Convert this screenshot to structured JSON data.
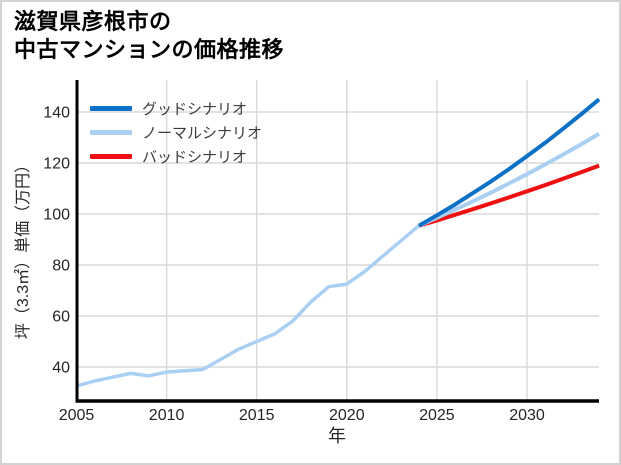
{
  "header": {
    "title_line1": "滋賀県彦根市の",
    "title_line2": "中古マンションの価格推移"
  },
  "colors": {
    "good": "#0b70c6",
    "normal": "#a9d0f3",
    "bad": "#ee1010",
    "grid": "#d9d9d9",
    "spine": "#000000",
    "tick_text": "#262626",
    "legend_text": "#3c3c3c"
  },
  "chart_data": {
    "type": "line",
    "title": "滋賀県彦根市の中古マンションの価格推移",
    "xlabel": "年",
    "ylabel": "坪（3.3㎡）単価（万円）",
    "xlim": [
      2005,
      2034.5
    ],
    "ylim": [
      26,
      153
    ],
    "xticks": [
      2005,
      2010,
      2015,
      2020,
      2025,
      2030
    ],
    "yticks": [
      40,
      60,
      80,
      100,
      120,
      140
    ],
    "grid": true,
    "legend": {
      "position": "top-left-inside",
      "entries": [
        {
          "label": "グッドシナリオ",
          "series_id": "good"
        },
        {
          "label": "ノーマルシナリオ",
          "series_id": "normal"
        },
        {
          "label": "バッドシナリオ",
          "series_id": "bad"
        }
      ]
    },
    "series": [
      {
        "id": "history",
        "name": "",
        "in_legend": false,
        "color": "#a9d0f3",
        "width": 3.5,
        "x": [
          2005,
          2006,
          2007,
          2008,
          2009,
          2010,
          2011,
          2012,
          2013,
          2014,
          2015,
          2016,
          2017,
          2018,
          2019,
          2020,
          2021,
          2022,
          2023,
          2024
        ],
        "values": [
          32.5,
          34.5,
          36.0,
          37.5,
          36.5,
          38.0,
          38.5,
          39.0,
          43.0,
          47.0,
          50.0,
          53.0,
          58.0,
          65.5,
          71.5,
          72.5,
          77.5,
          83.5,
          89.5,
          95.4
        ]
      },
      {
        "id": "bad",
        "name": "バッドシナリオ",
        "in_legend": true,
        "color": "#ee1010",
        "width": 4,
        "x": [
          2024,
          2025,
          2026,
          2027,
          2028,
          2029,
          2030,
          2031,
          2032,
          2033,
          2034
        ],
        "values": [
          95.4,
          97.5,
          99.7,
          101.9,
          104.2,
          106.5,
          108.9,
          111.3,
          113.8,
          116.4,
          119.0
        ]
      },
      {
        "id": "normal",
        "name": "ノーマルシナリオ",
        "in_legend": true,
        "color": "#a9d0f3",
        "width": 4,
        "x": [
          2024,
          2025,
          2026,
          2027,
          2028,
          2029,
          2030,
          2031,
          2032,
          2033,
          2034
        ],
        "values": [
          95.4,
          98.5,
          101.7,
          105.0,
          108.4,
          112.0,
          115.6,
          119.4,
          123.3,
          127.3,
          131.5
        ]
      },
      {
        "id": "good",
        "name": "グッドシナリオ",
        "in_legend": true,
        "color": "#0b70c6",
        "width": 4,
        "x": [
          2024,
          2025,
          2026,
          2027,
          2028,
          2029,
          2030,
          2031,
          2032,
          2033,
          2034
        ],
        "values": [
          95.4,
          99.5,
          103.7,
          108.2,
          112.8,
          117.6,
          122.7,
          127.9,
          133.4,
          139.1,
          145.0
        ]
      }
    ]
  }
}
